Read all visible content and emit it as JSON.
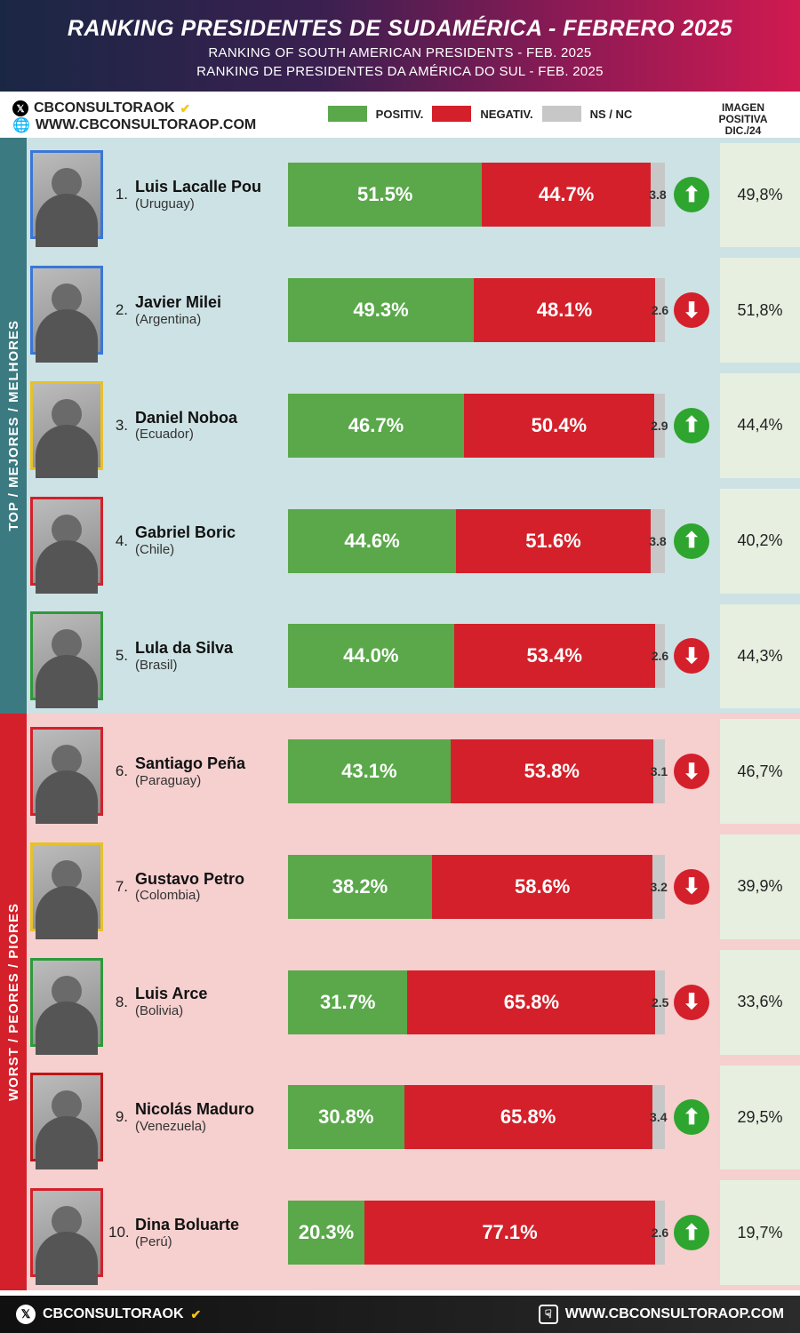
{
  "header": {
    "title": "RANKING PRESIDENTES DE SUDAMÉRICA - FEBRERO 2025",
    "subtitle_en": "RANKING OF SOUTH AMERICAN PRESIDENTS - FEB. 2025",
    "subtitle_pt": "RANKING DE PRESIDENTES DA AMÉRICA DO SUL - FEB. 2025",
    "bg_gradient": [
      "#1a2744",
      "#3a2050",
      "#8a1a55",
      "#d01a50"
    ]
  },
  "brand": {
    "handle": "CBCONSULTORAOK",
    "site_prefix": "WWW.",
    "site_bold": "CBCONSULTORAOP",
    "site_suffix": ".COM"
  },
  "legend": {
    "positive": {
      "label": "POSITIV.",
      "color": "#5aa84a"
    },
    "negative": {
      "label": "NEGATIV.",
      "color": "#d4202a"
    },
    "nsnc": {
      "label": "NS / NC",
      "color": "#c7c7c7"
    }
  },
  "previous_column": {
    "label_line1": "IMAGEN",
    "label_line2": "POSITIVA",
    "label_line3": "DIC./24",
    "bg": "#e6efe0"
  },
  "sections": {
    "top": {
      "label": "TOP / MEJORES / MELHORES",
      "rail_color": "#3a7a80",
      "row_bg": "#cde2e4"
    },
    "worst": {
      "label": "WORST / PEORES / PIORES",
      "rail_color": "#d4202a",
      "row_bg": "#f6cfcf"
    }
  },
  "arrow_colors": {
    "up": "#2ea52e",
    "down": "#d4202a"
  },
  "rows": [
    {
      "rank": 1,
      "name": "Luis Lacalle Pou",
      "country": "(Uruguay)",
      "positive": 51.5,
      "negative": 44.7,
      "nsnc": 3.8,
      "direction": "up",
      "previous": "49,8%",
      "section": "top",
      "portrait_border": "#3a77d6"
    },
    {
      "rank": 2,
      "name": "Javier Milei",
      "country": "(Argentina)",
      "positive": 49.3,
      "negative": 48.1,
      "nsnc": 2.6,
      "direction": "down",
      "previous": "51,8%",
      "section": "top",
      "portrait_border": "#3a77d6"
    },
    {
      "rank": 3,
      "name": "Daniel Noboa",
      "country": "(Ecuador)",
      "positive": 46.7,
      "negative": 50.4,
      "nsnc": 2.9,
      "direction": "up",
      "previous": "44,4%",
      "section": "top",
      "portrait_border": "#e6c12a"
    },
    {
      "rank": 4,
      "name": "Gabriel Boric",
      "country": "(Chile)",
      "positive": 44.6,
      "negative": 51.6,
      "nsnc": 3.8,
      "direction": "up",
      "previous": "40,2%",
      "section": "top",
      "portrait_border": "#d4202a"
    },
    {
      "rank": 5,
      "name": "Lula da Silva",
      "country": "(Brasil)",
      "positive": 44.0,
      "negative": 53.4,
      "nsnc": 2.6,
      "direction": "down",
      "previous": "44,3%",
      "section": "top",
      "portrait_border": "#2e9a3a"
    },
    {
      "rank": 6,
      "name": "Santiago Peña",
      "country": "(Paraguay)",
      "positive": 43.1,
      "negative": 53.8,
      "nsnc": 3.1,
      "direction": "down",
      "previous": "46,7%",
      "section": "worst",
      "portrait_border": "#d4202a"
    },
    {
      "rank": 7,
      "name": "Gustavo Petro",
      "country": "(Colombia)",
      "positive": 38.2,
      "negative": 58.6,
      "nsnc": 3.2,
      "direction": "down",
      "previous": "39,9%",
      "section": "worst",
      "portrait_border": "#e6c12a"
    },
    {
      "rank": 8,
      "name": "Luis Arce",
      "country": "(Bolivia)",
      "positive": 31.7,
      "negative": 65.8,
      "nsnc": 2.5,
      "direction": "down",
      "previous": "33,6%",
      "section": "worst",
      "portrait_border": "#2e9a3a"
    },
    {
      "rank": 9,
      "name": "Nicolás Maduro",
      "country": "(Venezuela)",
      "positive": 30.8,
      "negative": 65.8,
      "nsnc": 3.4,
      "direction": "up",
      "previous": "29,5%",
      "section": "worst",
      "portrait_border": "#c01515"
    },
    {
      "rank": 10,
      "name": "Dina Boluarte",
      "country": "(Perú)",
      "positive": 20.3,
      "negative": 77.1,
      "nsnc": 2.6,
      "direction": "up",
      "previous": "19,7%",
      "section": "worst",
      "portrait_border": "#d4202a"
    }
  ],
  "footer": {
    "handle": "CBCONSULTORAOK",
    "site": "WWW.CBCONSULTORAOP.COM"
  }
}
